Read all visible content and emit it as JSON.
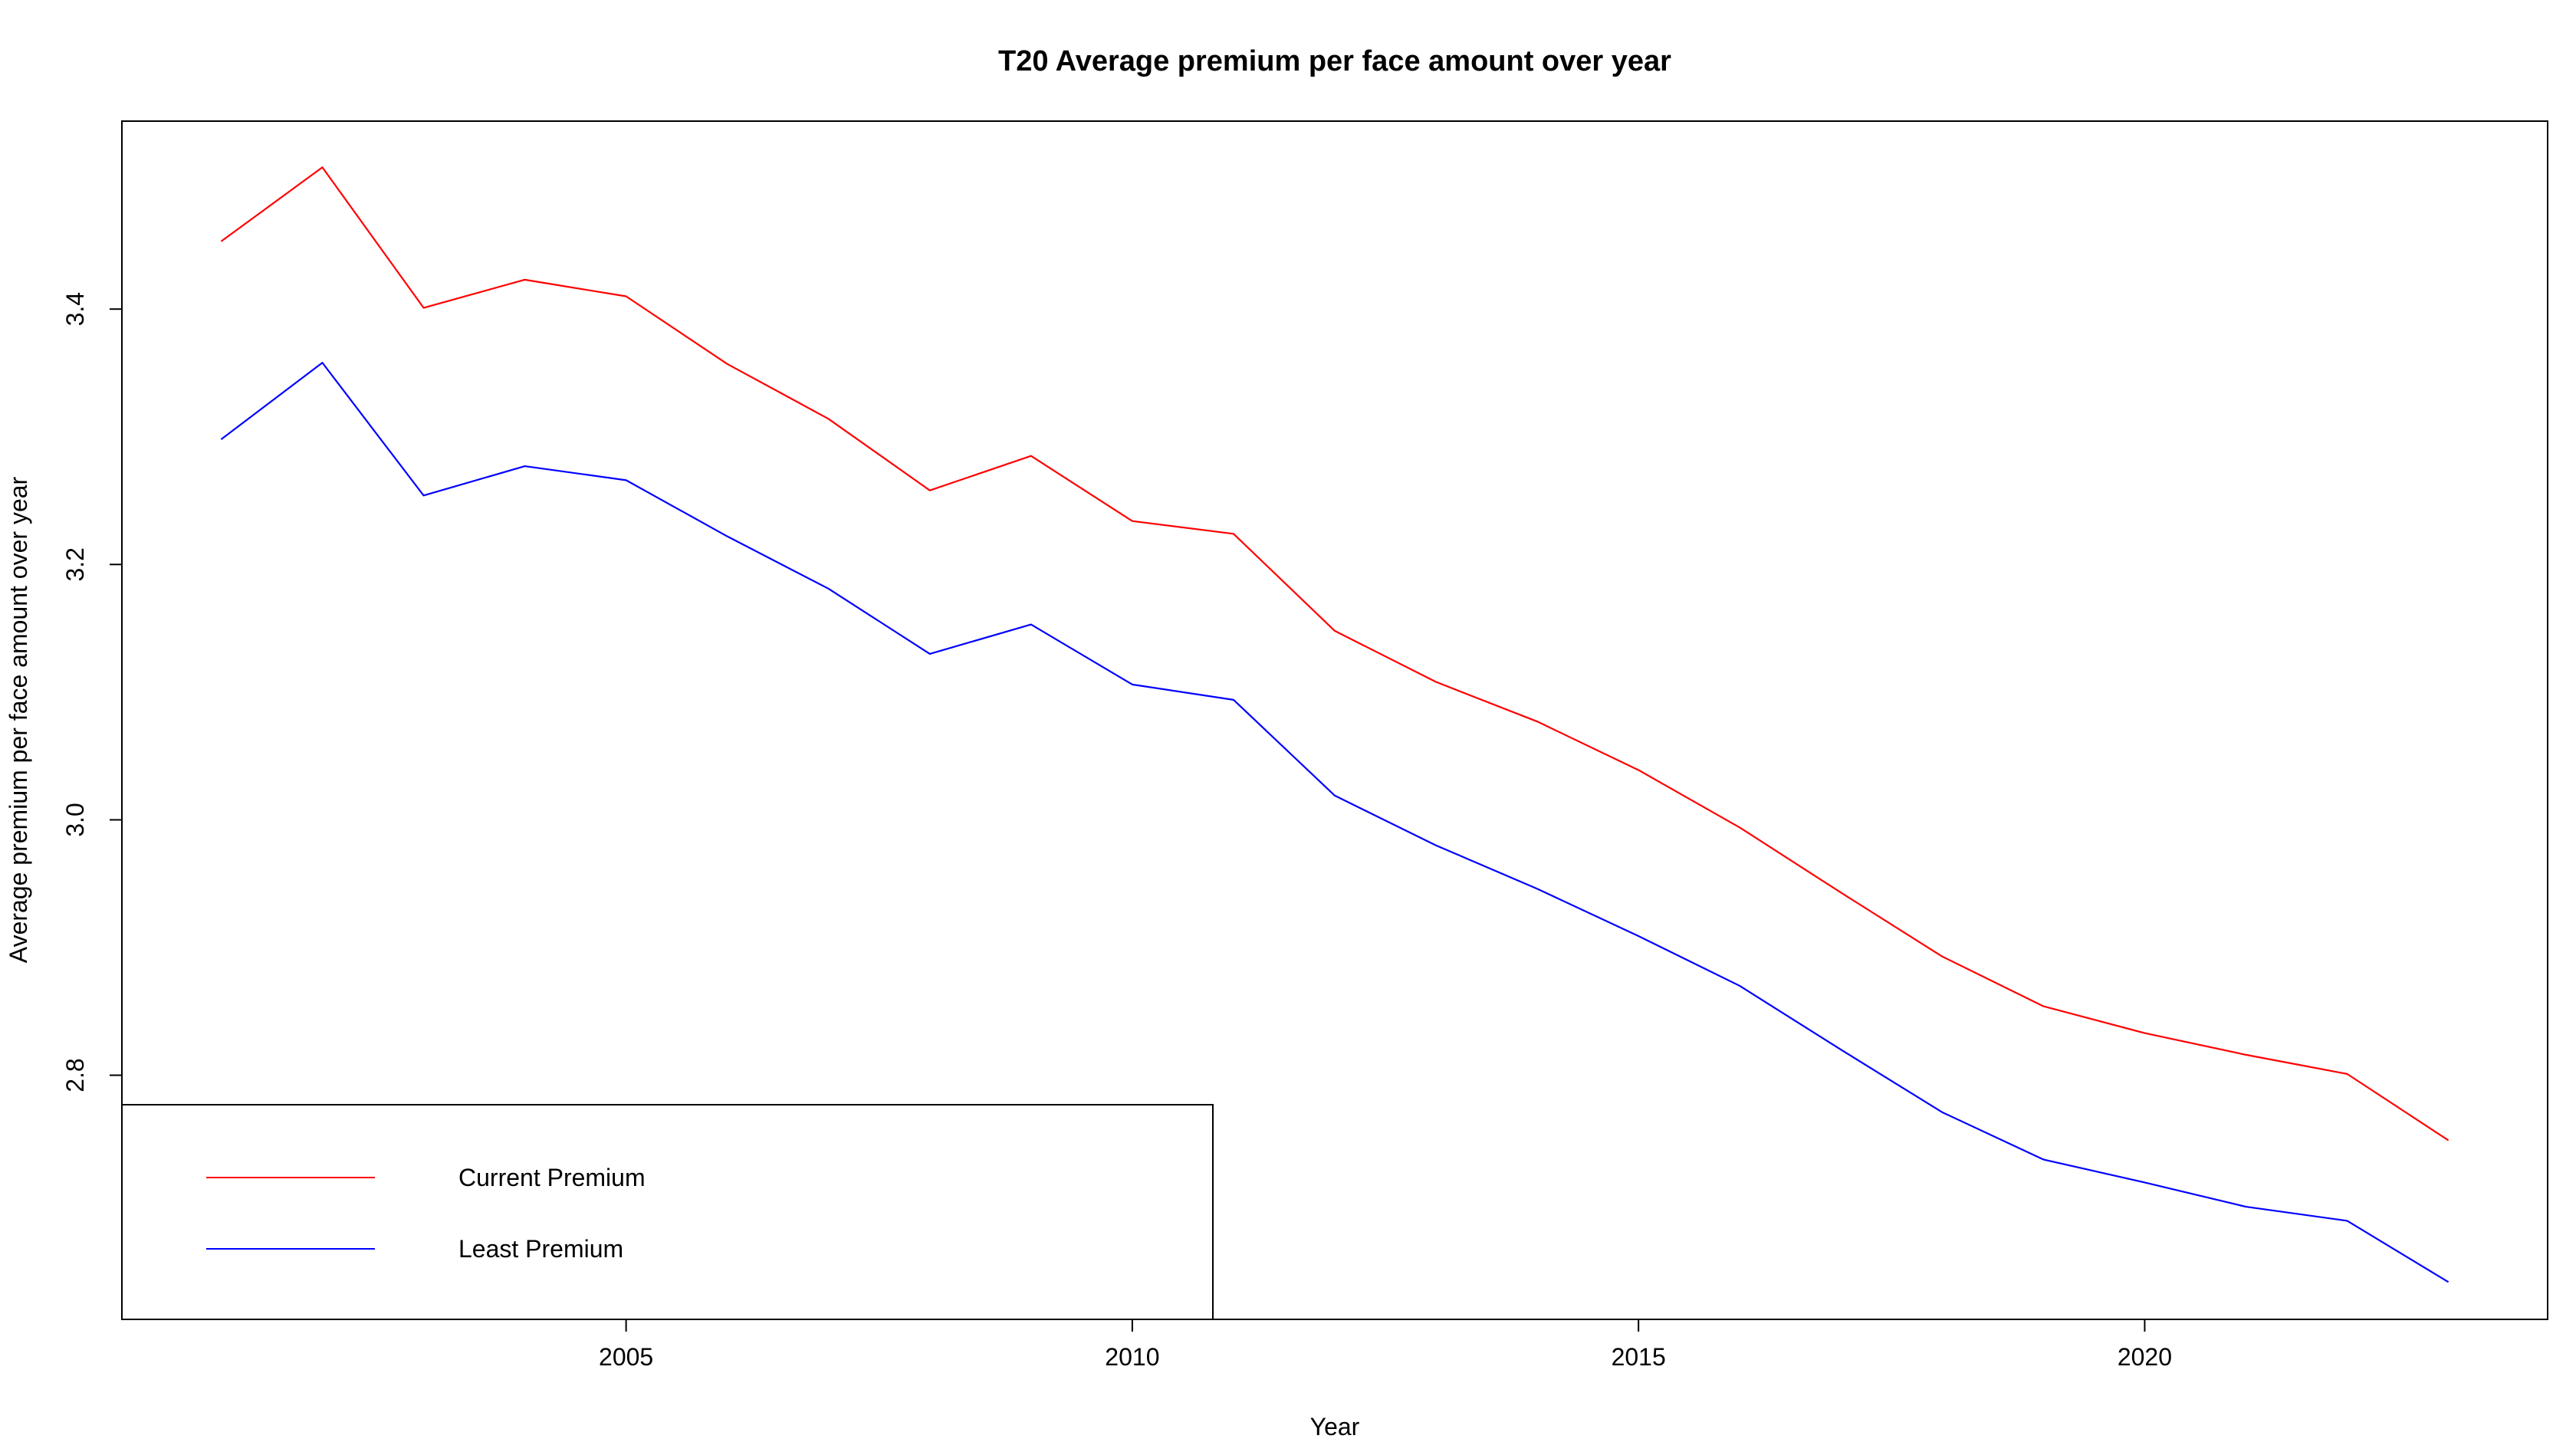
{
  "chart_data": {
    "type": "line",
    "title": "T20 Average premium per face amount over year",
    "xlabel": "Year",
    "ylabel": "Average premium per face amount over year",
    "xlim": [
      2000.02,
      2023.98
    ],
    "ylim": [
      2.6088,
      3.5472
    ],
    "x_ticks": [
      2005,
      2010,
      2015,
      2020
    ],
    "y_ticks": [
      2.8,
      3.0,
      3.2,
      3.4
    ],
    "x_tick_labels": [
      "2005",
      "2010",
      "2015",
      "2020"
    ],
    "y_tick_labels": [
      "2.8",
      "3.0",
      "3.2",
      "3.4"
    ],
    "grid": false,
    "legend_position": "bottom-left",
    "x": [
      2001,
      2002,
      2003,
      2004,
      2005,
      2006,
      2007,
      2008,
      2009,
      2010,
      2011,
      2012,
      2013,
      2014,
      2015,
      2016,
      2017,
      2018,
      2019,
      2020,
      2021,
      2022,
      2023
    ],
    "series": [
      {
        "name": "Current Premium",
        "color": "#ff0000",
        "values": [
          3.453,
          3.511,
          3.401,
          3.423,
          3.41,
          3.357,
          3.314,
          3.258,
          3.285,
          3.234,
          3.224,
          3.148,
          3.108,
          3.077,
          3.039,
          2.994,
          2.943,
          2.893,
          2.854,
          2.833,
          2.816,
          2.801,
          2.749
        ]
      },
      {
        "name": "Least Premium",
        "color": "#0000ff",
        "values": [
          3.298,
          3.358,
          3.254,
          3.277,
          3.266,
          3.222,
          3.181,
          3.13,
          3.153,
          3.106,
          3.094,
          3.019,
          2.98,
          2.946,
          2.909,
          2.87,
          2.82,
          2.771,
          2.734,
          2.716,
          2.697,
          2.686,
          2.638
        ]
      }
    ]
  }
}
